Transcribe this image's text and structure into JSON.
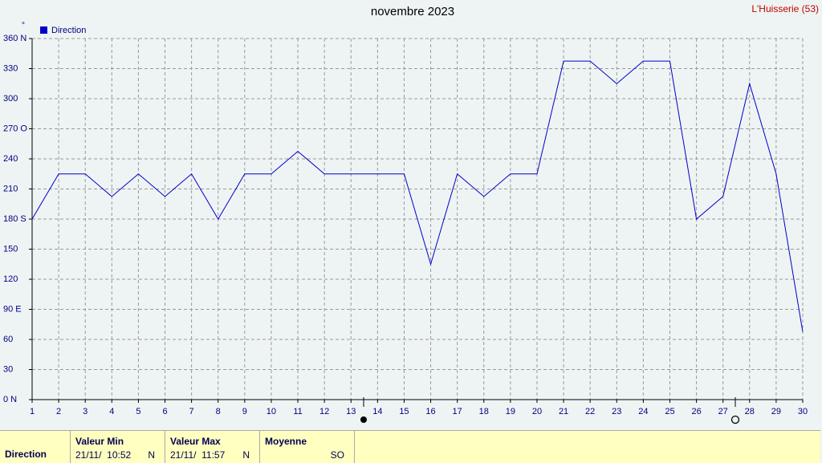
{
  "chart_data": {
    "type": "line",
    "title": "novembre 2023",
    "station": "L'Huisserie (53)",
    "y_unit": "°",
    "x": [
      1,
      2,
      3,
      4,
      5,
      6,
      7,
      8,
      9,
      10,
      11,
      12,
      13,
      14,
      15,
      16,
      17,
      18,
      19,
      20,
      21,
      22,
      23,
      24,
      25,
      26,
      27,
      28,
      29,
      30
    ],
    "series": [
      {
        "name": "Direction",
        "color": "#0000c8",
        "values": [
          180,
          225,
          225,
          202.5,
          225,
          202.5,
          225,
          180,
          225,
          225,
          247.5,
          225,
          225,
          225,
          225,
          135,
          225,
          202.5,
          225,
          225,
          337.5,
          337.5,
          315,
          337.5,
          337.5,
          180,
          202.5,
          315,
          225,
          67.5
        ]
      }
    ],
    "xlim": [
      1,
      30
    ],
    "xticks": [
      1,
      2,
      3,
      4,
      5,
      6,
      7,
      8,
      9,
      10,
      11,
      12,
      13,
      14,
      15,
      16,
      17,
      18,
      19,
      20,
      21,
      22,
      23,
      24,
      25,
      26,
      27,
      28,
      29,
      30
    ],
    "ylim": [
      0,
      360
    ],
    "yticks": [
      {
        "value": 0,
        "label": "0  N"
      },
      30,
      60,
      {
        "value": 90,
        "label": "90  E"
      },
      120,
      150,
      {
        "value": 180,
        "label": "180 S"
      },
      210,
      240,
      {
        "value": 270,
        "label": "270 O"
      },
      300,
      330,
      {
        "value": 360,
        "label": "360 N"
      }
    ],
    "grid": true,
    "legend": "top-left"
  },
  "summary_table": {
    "row_label": "Direction",
    "columns": [
      {
        "header": "Valeur Min",
        "time": "21/11/  10:52",
        "value": "N"
      },
      {
        "header": "Valeur Max",
        "time": "21/11/  11:57",
        "value": "N"
      },
      {
        "header": "Moyenne",
        "value": "SO"
      }
    ]
  }
}
